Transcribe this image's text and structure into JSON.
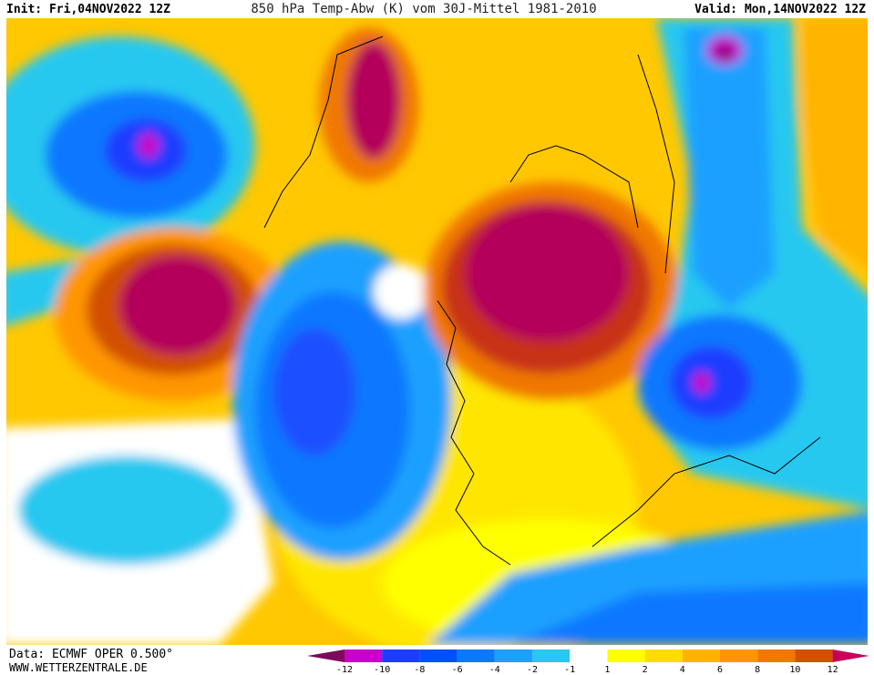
{
  "header": {
    "init": "Init: Fri,04NOV2022 12Z",
    "title": "850 hPa Temp-Abw (K) vom 30J-Mittel 1981-2010",
    "valid": "Valid: Mon,14NOV2022 12Z"
  },
  "footer": {
    "data": "Data: ECMWF OPER 0.500°",
    "site": "WWW.WETTERZENTRALE.DE"
  },
  "colorbar": {
    "labels": [
      "-12",
      "-10",
      "-8",
      "-6",
      "-4",
      "-2",
      "-1",
      "1",
      "2",
      "4",
      "6",
      "8",
      "10",
      "12"
    ]
  }
}
